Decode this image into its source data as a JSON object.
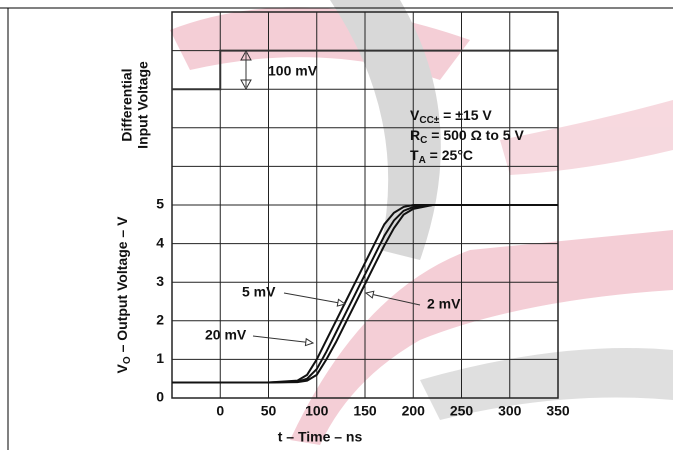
{
  "chart_data": {
    "type": "line",
    "x_label": "t – Time – ns",
    "y_label": {
      "main": "V",
      "sub": "O",
      "rest": " – Output Voltage – V"
    },
    "input_label": [
      "Differential",
      "Input Voltage"
    ],
    "xlim": [
      -50,
      350
    ],
    "xticks": [
      0,
      50,
      100,
      150,
      200,
      250,
      300,
      350
    ],
    "ylim": [
      0,
      10
    ],
    "yticks": [
      0,
      1,
      2,
      3,
      4,
      5
    ],
    "y_grid": [
      0,
      1,
      2,
      3,
      4,
      5,
      6,
      7,
      8,
      9,
      10
    ],
    "grid": true,
    "input_trace": {
      "color": "#333333",
      "x": [
        -50,
        0,
        0,
        350
      ],
      "values": [
        8,
        8,
        9,
        9
      ]
    },
    "input_step_label": "100 mV",
    "conditions": [
      {
        "main": "V",
        "sub": "CC±",
        "rest": " = ±15 V"
      },
      {
        "main": "R",
        "sub": "C",
        "rest": " = 500 Ω to 5 V"
      },
      {
        "main": "T",
        "sub": "A",
        "rest": " = 25°C"
      }
    ],
    "x": [
      -50,
      50,
      80,
      90,
      100,
      110,
      120,
      130,
      140,
      150,
      160,
      170,
      180,
      190,
      200,
      220,
      350
    ],
    "series": [
      {
        "name": "20 mV",
        "color": "#111111",
        "values": [
          0.4,
          0.4,
          0.45,
          0.6,
          1.0,
          1.5,
          2.0,
          2.5,
          3.0,
          3.5,
          4.0,
          4.5,
          4.8,
          4.95,
          5,
          5,
          5
        ]
      },
      {
        "name": "5 mV",
        "color": "#111111",
        "values": [
          0.4,
          0.4,
          0.42,
          0.5,
          0.75,
          1.2,
          1.7,
          2.2,
          2.7,
          3.2,
          3.7,
          4.2,
          4.6,
          4.85,
          4.95,
          5,
          5
        ]
      },
      {
        "name": "2 mV",
        "color": "#111111",
        "values": [
          0.4,
          0.4,
          0.41,
          0.45,
          0.6,
          1.0,
          1.45,
          1.95,
          2.45,
          2.95,
          3.45,
          3.95,
          4.4,
          4.75,
          4.9,
          5,
          5
        ]
      }
    ]
  }
}
